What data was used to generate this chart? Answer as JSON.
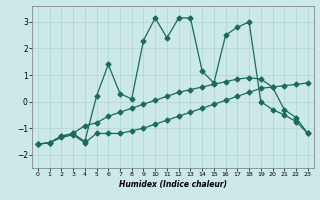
{
  "xlabel": "Humidex (Indice chaleur)",
  "background_color": "#cce8e8",
  "grid_color": "#b0d8d8",
  "line_color": "#1a6b5a",
  "xlim": [
    -0.5,
    23.5
  ],
  "ylim": [
    -2.5,
    3.6
  ],
  "yticks": [
    -2,
    -1,
    0,
    1,
    2,
    3
  ],
  "xticks": [
    0,
    1,
    2,
    3,
    4,
    5,
    6,
    7,
    8,
    9,
    10,
    11,
    12,
    13,
    14,
    15,
    16,
    17,
    18,
    19,
    20,
    21,
    22,
    23
  ],
  "series1_x": [
    0,
    1,
    2,
    3,
    4,
    5,
    6,
    7,
    8,
    9,
    10,
    11,
    12,
    13,
    14,
    15,
    16,
    17,
    18,
    19,
    20,
    21,
    22,
    23
  ],
  "series1_y": [
    -1.6,
    -1.55,
    -1.35,
    -1.25,
    -1.55,
    -1.2,
    -1.2,
    -1.2,
    -1.1,
    -1.0,
    -0.85,
    -0.7,
    -0.55,
    -0.4,
    -0.25,
    -0.1,
    0.05,
    0.2,
    0.35,
    0.5,
    0.55,
    0.6,
    0.65,
    0.7
  ],
  "series2_x": [
    0,
    1,
    2,
    3,
    4,
    5,
    6,
    7,
    8,
    9,
    10,
    11,
    12,
    13,
    14,
    15,
    16,
    17,
    18,
    19,
    20,
    21,
    22,
    23
  ],
  "series2_y": [
    -1.6,
    -1.55,
    -1.3,
    -1.2,
    -0.9,
    -0.8,
    -0.55,
    -0.4,
    -0.25,
    -0.1,
    0.05,
    0.2,
    0.35,
    0.45,
    0.55,
    0.65,
    0.75,
    0.85,
    0.9,
    0.85,
    0.55,
    -0.3,
    -0.6,
    -1.2
  ],
  "series3_x": [
    0,
    1,
    2,
    3,
    4,
    5,
    6,
    7,
    8,
    9,
    10,
    11,
    12,
    13,
    14,
    15,
    16,
    17,
    18,
    19,
    20,
    21,
    22,
    23
  ],
  "series3_y": [
    -1.6,
    -1.55,
    -1.3,
    -1.2,
    -1.5,
    0.2,
    1.4,
    0.3,
    0.1,
    2.3,
    3.15,
    2.4,
    3.15,
    3.15,
    1.15,
    0.7,
    2.5,
    2.8,
    3.0,
    0.0,
    -0.3,
    -0.5,
    -0.75,
    -1.2
  ],
  "marker": "D",
  "markersize": 2.5,
  "linewidth": 0.9
}
